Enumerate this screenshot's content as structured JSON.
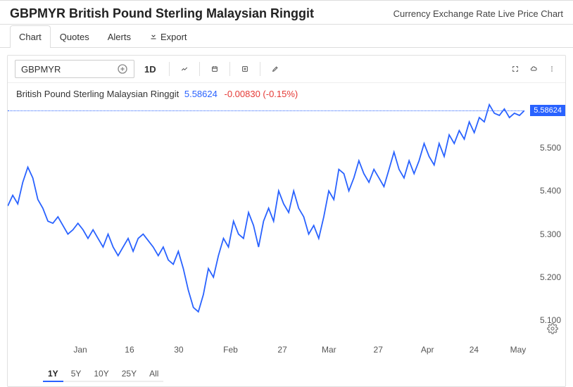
{
  "header": {
    "title": "GBPMYR British Pound Sterling Malaysian Ringgit",
    "subtitle": "Currency Exchange Rate Live Price Chart"
  },
  "tabs": [
    {
      "label": "Chart",
      "active": true
    },
    {
      "label": "Quotes",
      "active": false
    },
    {
      "label": "Alerts",
      "active": false
    },
    {
      "label": "Export",
      "active": false,
      "icon": "download"
    }
  ],
  "toolbar": {
    "symbol": "GBPMYR",
    "interval": "1D"
  },
  "chart": {
    "type": "line",
    "info_name": "British Pound Sterling Malaysian Ringgit",
    "info_price": "5.58624",
    "info_change": "-0.00830 (-0.15%)",
    "line_color": "#2962ff",
    "background_color": "#ffffff",
    "ylim": [
      5.05,
      5.65
    ],
    "yticks": [
      5.1,
      5.2,
      5.3,
      5.4,
      5.5
    ],
    "ytick_labels": [
      "5.100",
      "5.200",
      "5.300",
      "5.400",
      "5.500"
    ],
    "price_tag": "5.58624",
    "price_tag_value": 5.58624,
    "xticks": [
      {
        "pos": 0.14,
        "label": "Jan"
      },
      {
        "pos": 0.235,
        "label": "16"
      },
      {
        "pos": 0.33,
        "label": "30"
      },
      {
        "pos": 0.43,
        "label": "Feb"
      },
      {
        "pos": 0.53,
        "label": "27"
      },
      {
        "pos": 0.62,
        "label": "Mar"
      },
      {
        "pos": 0.715,
        "label": "27"
      },
      {
        "pos": 0.81,
        "label": "Apr"
      },
      {
        "pos": 0.9,
        "label": "24"
      },
      {
        "pos": 0.985,
        "label": "May"
      }
    ],
    "series": [
      5.365,
      5.39,
      5.37,
      5.42,
      5.455,
      5.43,
      5.38,
      5.36,
      5.33,
      5.325,
      5.34,
      5.32,
      5.3,
      5.31,
      5.325,
      5.31,
      5.29,
      5.31,
      5.29,
      5.27,
      5.3,
      5.27,
      5.25,
      5.27,
      5.29,
      5.26,
      5.29,
      5.3,
      5.285,
      5.27,
      5.25,
      5.27,
      5.24,
      5.23,
      5.26,
      5.22,
      5.17,
      5.13,
      5.12,
      5.16,
      5.22,
      5.2,
      5.25,
      5.29,
      5.27,
      5.33,
      5.3,
      5.29,
      5.35,
      5.32,
      5.27,
      5.33,
      5.36,
      5.33,
      5.4,
      5.37,
      5.35,
      5.4,
      5.36,
      5.34,
      5.3,
      5.32,
      5.29,
      5.34,
      5.4,
      5.38,
      5.45,
      5.44,
      5.4,
      5.43,
      5.47,
      5.44,
      5.42,
      5.45,
      5.43,
      5.41,
      5.45,
      5.49,
      5.45,
      5.43,
      5.47,
      5.44,
      5.47,
      5.51,
      5.48,
      5.46,
      5.51,
      5.48,
      5.53,
      5.51,
      5.54,
      5.52,
      5.56,
      5.535,
      5.57,
      5.56,
      5.6,
      5.58,
      5.575,
      5.59,
      5.57,
      5.58,
      5.575,
      5.58624
    ]
  },
  "timeframes": [
    {
      "label": "1Y",
      "active": true
    },
    {
      "label": "5Y",
      "active": false
    },
    {
      "label": "10Y",
      "active": false
    },
    {
      "label": "25Y",
      "active": false
    },
    {
      "label": "All",
      "active": false
    }
  ]
}
